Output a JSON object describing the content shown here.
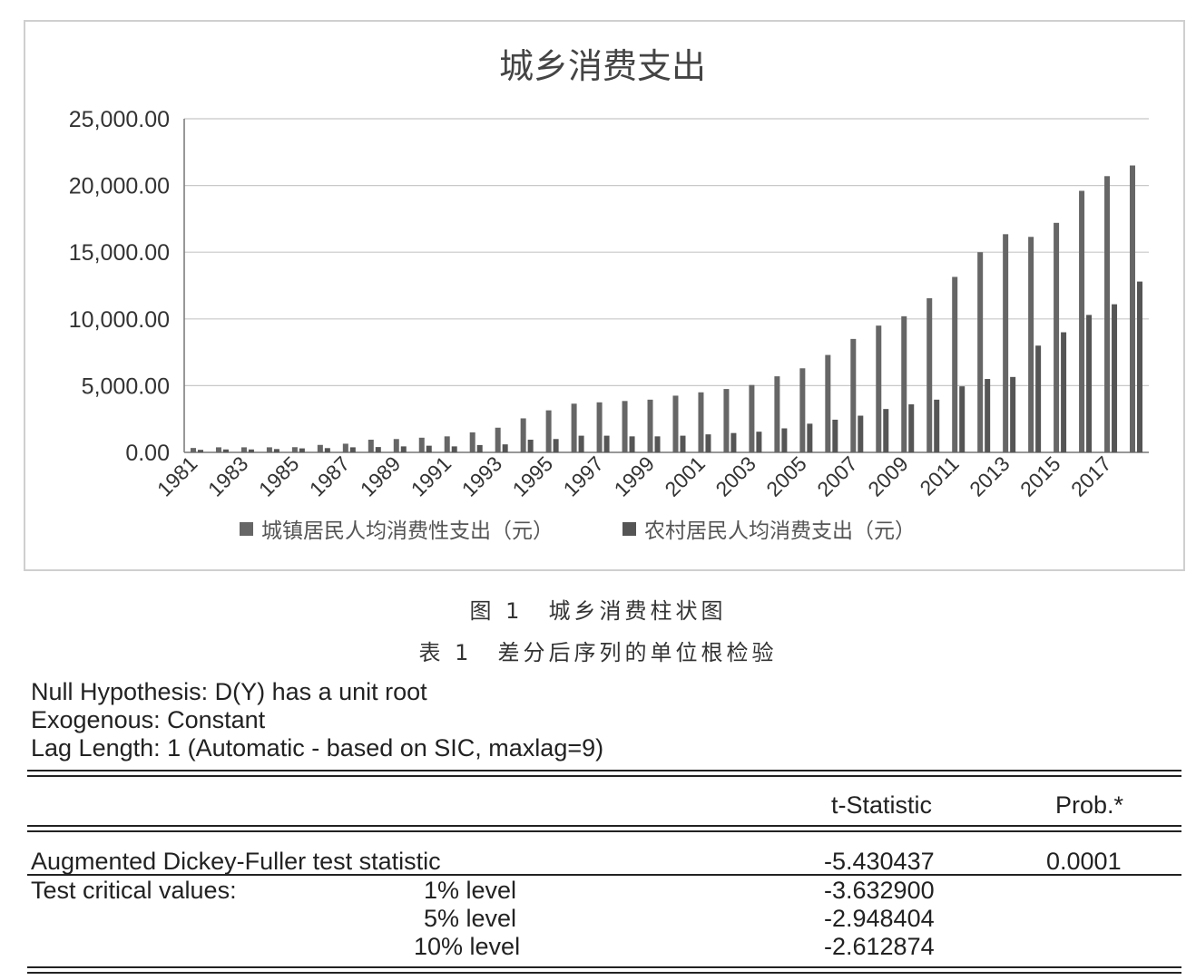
{
  "chart_data": {
    "type": "bar",
    "title": "城乡消费支出",
    "xlabel": "",
    "ylabel": "",
    "ylim": [
      0,
      25000
    ],
    "y_ticks": [
      "0.00",
      "5,000.00",
      "10,000.00",
      "15,000.00",
      "20,000.00",
      "25,000.00"
    ],
    "grid": true,
    "legend_position": "bottom",
    "categories": [
      "1981",
      "1982",
      "1983",
      "1984",
      "1985",
      "1986",
      "1987",
      "1988",
      "1989",
      "1990",
      "1991",
      "1992",
      "1993",
      "1994",
      "1995",
      "1996",
      "1997",
      "1998",
      "1999",
      "2000",
      "2001",
      "2002",
      "2003",
      "2004",
      "2005",
      "2006",
      "2007",
      "2008",
      "2009",
      "2010",
      "2011",
      "2012",
      "2013",
      "2014",
      "2015",
      "2016",
      "2017",
      "2018"
    ],
    "x_tick_labels": [
      "1981",
      "",
      "1983",
      "",
      "1985",
      "",
      "1987",
      "",
      "1989",
      "",
      "1991",
      "",
      "1993",
      "",
      "1995",
      "",
      "1997",
      "",
      "1999",
      "",
      "2001",
      "",
      "2003",
      "",
      "2005",
      "",
      "2007",
      "",
      "2009",
      "",
      "2011",
      "",
      "2013",
      "",
      "2015",
      "",
      "2017",
      ""
    ],
    "series": [
      {
        "name": "城镇居民人均消费性支出（元）",
        "color": "#666666",
        "values": [
          330,
          380,
          380,
          380,
          390,
          560,
          650,
          950,
          1000,
          1100,
          1200,
          1500,
          1850,
          2550,
          3150,
          3650,
          3750,
          3850,
          3950,
          4250,
          4500,
          4750,
          5050,
          5700,
          6300,
          7300,
          8500,
          9500,
          10200,
          11550,
          13150,
          15000,
          16350,
          16150,
          17200,
          19600,
          20700,
          21500
        ]
      },
      {
        "name": "农村居民人均消费支出（元）",
        "color": "#555555",
        "values": [
          190,
          220,
          220,
          250,
          300,
          320,
          380,
          400,
          450,
          500,
          450,
          550,
          600,
          950,
          1000,
          1250,
          1250,
          1200,
          1200,
          1250,
          1350,
          1450,
          1550,
          1800,
          2150,
          2450,
          2750,
          3250,
          3600,
          3950,
          4950,
          5500,
          5650,
          8000,
          9000,
          10300,
          11100,
          12800
        ]
      }
    ]
  },
  "captions": {
    "figure": "图 1　城乡消费柱状图",
    "table": "表 1　差分后序列的单位根检验"
  },
  "table": {
    "null_hypothesis": "Null Hypothesis: D(Y) has a unit root",
    "exogenous": "Exogenous: Constant",
    "lag_length": "Lag Length: 1 (Automatic - based on SIC, maxlag=9)",
    "col_tstat": "t-Statistic",
    "col_prob": "Prob.*",
    "adf_label": "Augmented Dickey-Fuller test statistic",
    "adf_tstat": "-5.430437",
    "adf_prob": "0.0001",
    "crit_label": "Test critical values:",
    "levels": [
      {
        "label": "1% level",
        "value": "-3.632900"
      },
      {
        "label": "5% level",
        "value": "-2.948404"
      },
      {
        "label": "10% level",
        "value": "-2.612874"
      }
    ]
  }
}
